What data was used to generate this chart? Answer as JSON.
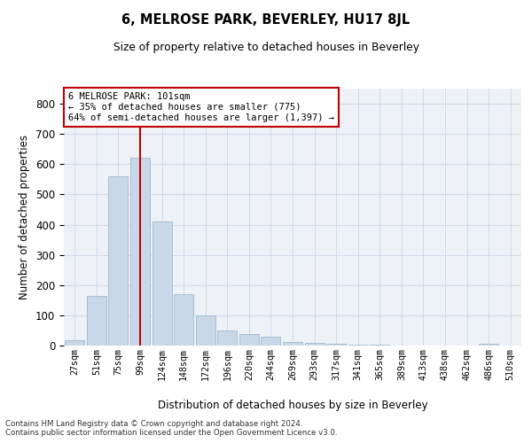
{
  "title": "6, MELROSE PARK, BEVERLEY, HU17 8JL",
  "subtitle": "Size of property relative to detached houses in Beverley",
  "xlabel": "Distribution of detached houses by size in Beverley",
  "ylabel": "Number of detached properties",
  "bar_labels": [
    "27sqm",
    "51sqm",
    "75sqm",
    "99sqm",
    "124sqm",
    "148sqm",
    "172sqm",
    "196sqm",
    "220sqm",
    "244sqm",
    "269sqm",
    "293sqm",
    "317sqm",
    "341sqm",
    "365sqm",
    "389sqm",
    "413sqm",
    "438sqm",
    "462sqm",
    "486sqm",
    "510sqm"
  ],
  "bar_values": [
    17,
    165,
    560,
    620,
    410,
    170,
    100,
    50,
    37,
    28,
    12,
    10,
    5,
    3,
    2,
    1,
    1,
    0,
    0,
    5,
    0
  ],
  "bar_color": "#c8d8e8",
  "bar_edge_color": "#a0b8cc",
  "highlight_bar_index": 3,
  "highlight_color": "#c00000",
  "property_size": "101sqm",
  "pct_smaller": 35,
  "count_smaller": 775,
  "pct_larger_semi": 64,
  "count_larger_semi": 1397,
  "annotation_box_color": "#ffffff",
  "annotation_box_edge": "#c00000",
  "ylim": [
    0,
    850
  ],
  "yticks": [
    0,
    100,
    200,
    300,
    400,
    500,
    600,
    700,
    800
  ],
  "footer_line1": "Contains HM Land Registry data © Crown copyright and database right 2024.",
  "footer_line2": "Contains public sector information licensed under the Open Government Licence v3.0.",
  "grid_color": "#d0d8e8",
  "bg_color": "#eef2f7"
}
